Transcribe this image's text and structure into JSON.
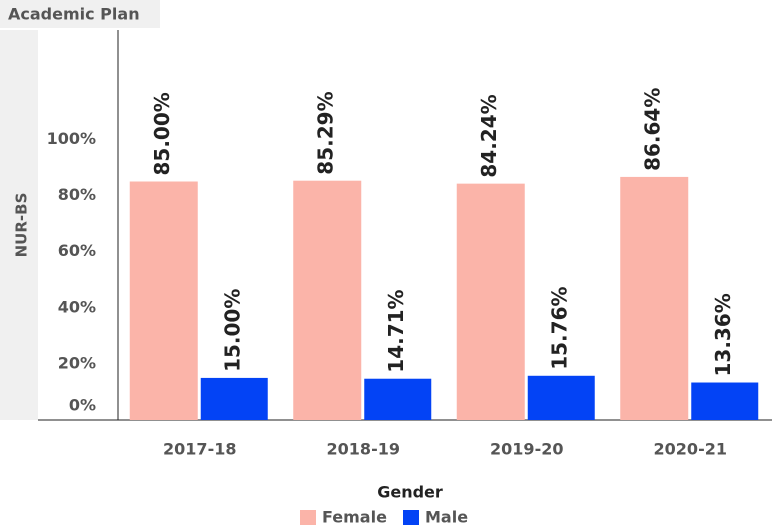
{
  "chart_data": {
    "type": "bar",
    "title": "Academic Plan",
    "y_label": "NUR-BS",
    "legend_title": "Gender",
    "categories": [
      "2017-18",
      "2018-19",
      "2019-20",
      "2020-21"
    ],
    "series": [
      {
        "name": "Female",
        "color": "#fbb4a9",
        "values": [
          85.0,
          85.29,
          84.24,
          86.64
        ],
        "value_labels": [
          "85.00%",
          "85.29%",
          "84.24%",
          "86.64%"
        ]
      },
      {
        "name": "Male",
        "color": "#0343f5",
        "values": [
          15.0,
          14.71,
          15.76,
          13.36
        ],
        "value_labels": [
          "15.00%",
          "14.71%",
          "15.76%",
          "13.36%"
        ]
      }
    ],
    "ylim": [
      0,
      139
    ],
    "yticks": [
      {
        "value": 0,
        "label": "0%"
      },
      {
        "value": 20,
        "label": "20%"
      },
      {
        "value": 40,
        "label": "40%"
      },
      {
        "value": 60,
        "label": "60%"
      },
      {
        "value": 80,
        "label": "80%"
      },
      {
        "value": 100,
        "label": "100%"
      }
    ],
    "legend_position": "bottom"
  }
}
